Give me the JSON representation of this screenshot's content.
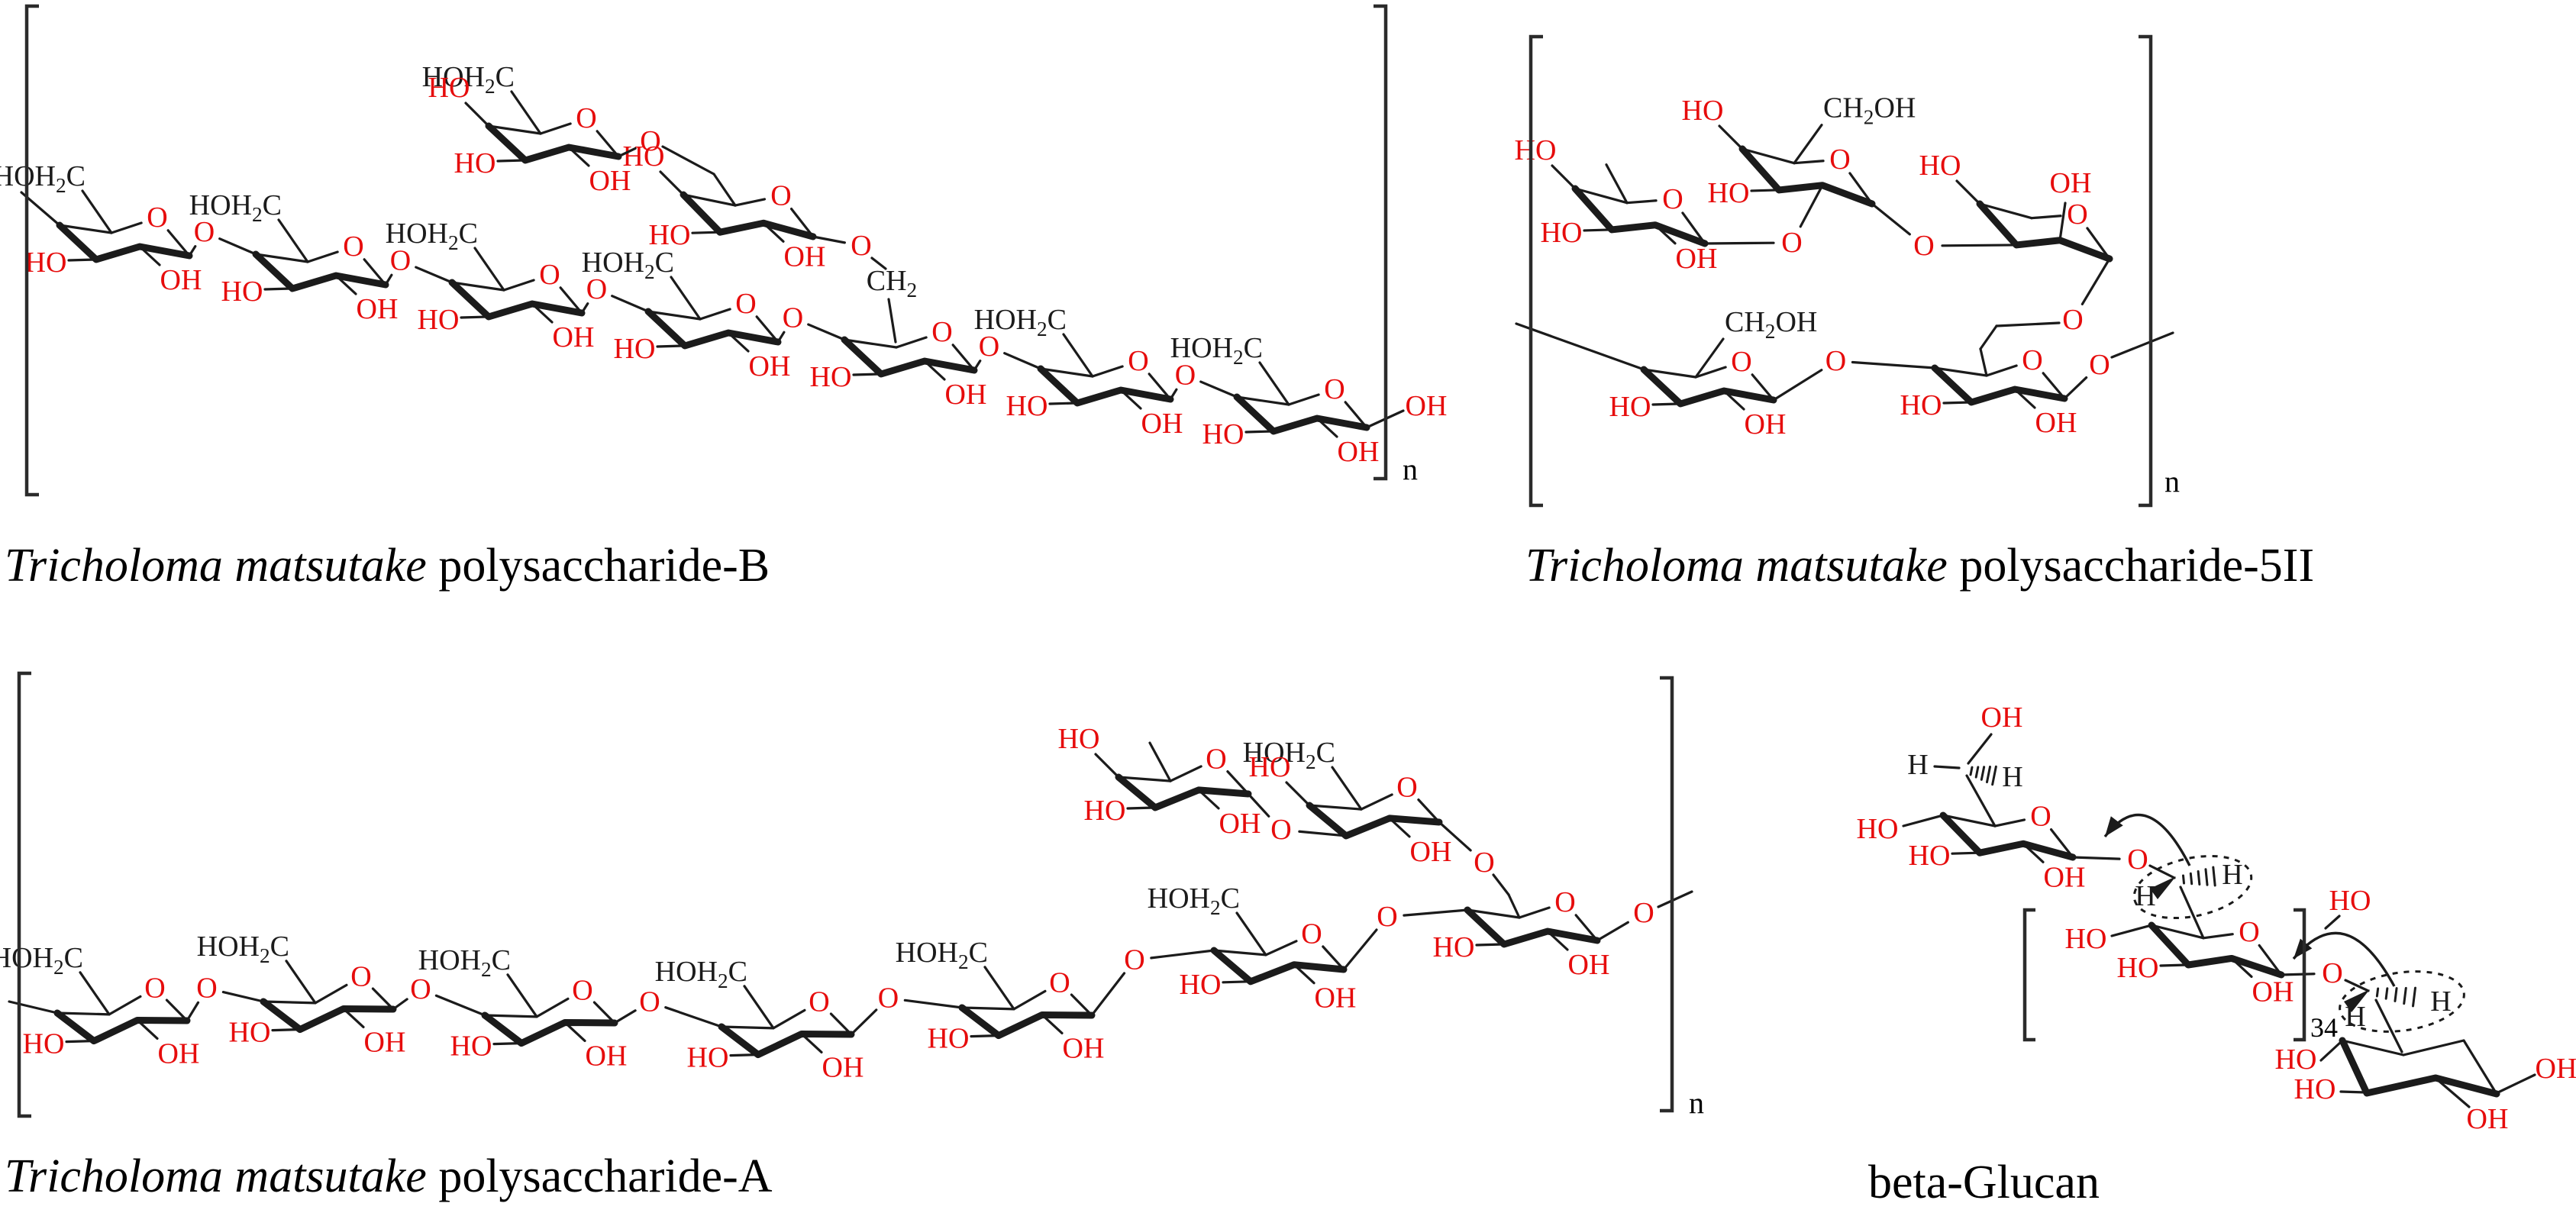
{
  "figure": {
    "type": "chemical-structure-diagram",
    "description": "Four polysaccharide structures drawn as pyranose chair conformations"
  },
  "titles": {
    "b": {
      "italic": "Tricholoma matsutake",
      "rest": " polysaccharide-B"
    },
    "s5ii": {
      "italic": "Tricholoma matsutake",
      "rest": " polysaccharide-5II"
    },
    "a": {
      "italic": "Tricholoma matsutake",
      "rest": " polysaccharide-A"
    },
    "beta": {
      "italic": "",
      "rest": "beta-Glucan"
    }
  },
  "atoms": {
    "ring_oxygen": "O",
    "glycosidic_oxygen": "O",
    "hydroxyl": "OH",
    "hydroxyl_reversed": "HO",
    "hydroxymethyl": {
      "pre": "HOH",
      "sub": "2",
      "post": "C"
    },
    "hydroxymethyl_alt": {
      "pre": "CH",
      "sub": "2",
      "post": "OH"
    },
    "methylene": {
      "pre": "CH",
      "sub": "2",
      "post": ""
    },
    "hydrogen": "H"
  },
  "subscripts": {
    "polysaccharide_b": "n",
    "polysaccharide_5ii": "n",
    "polysaccharide_a": "n",
    "beta_glucan_repeat": "34"
  },
  "colors": {
    "heteroatom_red": "#e60c0c",
    "bond_black": "#1b1b1b",
    "bracket_gray": "#2b2b2b"
  }
}
